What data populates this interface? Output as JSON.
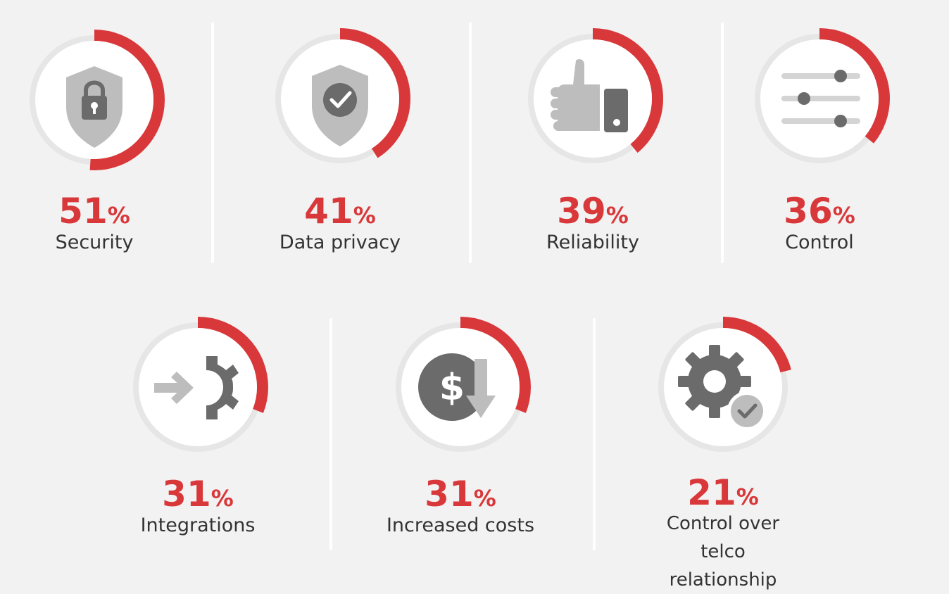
{
  "chart_data": {
    "type": "donut",
    "unit": "%",
    "items": [
      {
        "label": "Security",
        "value": 51,
        "icon": "shield-lock-icon"
      },
      {
        "label": "Data privacy",
        "value": 41,
        "icon": "shield-check-icon"
      },
      {
        "label": "Reliability",
        "value": 39,
        "icon": "thumbs-up-icon"
      },
      {
        "label": "Control",
        "value": 36,
        "icon": "sliders-icon"
      },
      {
        "label": "Integrations",
        "value": 31,
        "icon": "arrow-gear-icon"
      },
      {
        "label": "Increased costs",
        "value": 31,
        "icon": "dollar-down-icon"
      },
      {
        "label": "Control over telco relationship",
        "value": 21,
        "icon": "gear-check-icon"
      }
    ]
  },
  "colors": {
    "accent": "#d9383a",
    "track": "#e6e6e6",
    "icon_dark": "#6b6b6b",
    "icon_light": "#bdbdbd",
    "background": "#f2f2f2"
  }
}
